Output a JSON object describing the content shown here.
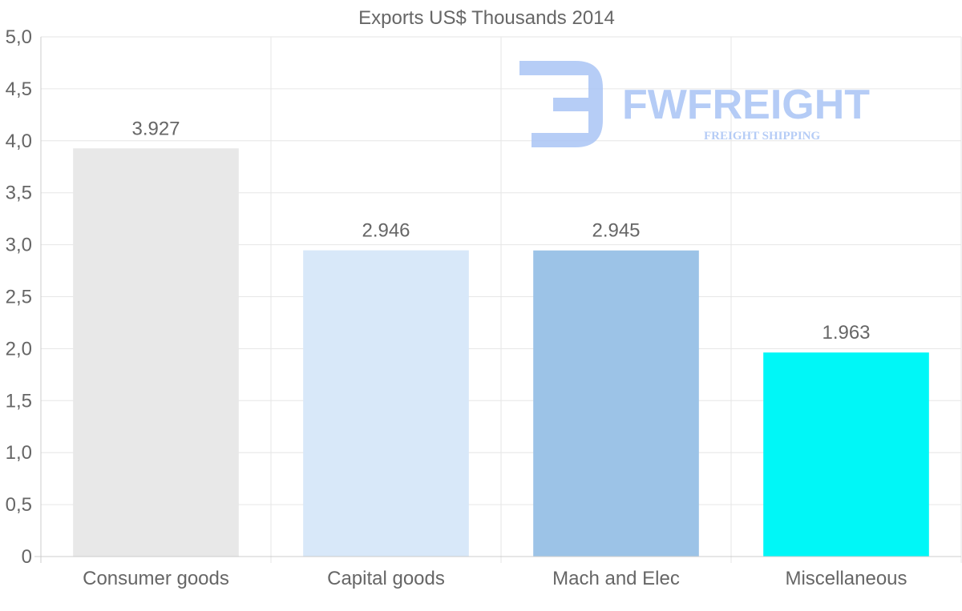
{
  "chart_data": {
    "type": "bar",
    "title": "Exports US$ Thousands 2014",
    "categories": [
      "Consumer goods",
      "Capital goods",
      "Mach and Elec",
      "Miscellaneous"
    ],
    "values": [
      3.927,
      2.946,
      2.945,
      1.963
    ],
    "value_labels": [
      "3.927",
      "2.946",
      "2.945",
      "1.963"
    ],
    "colors": [
      "#e8e8e8",
      "#d8e8f9",
      "#9cc3e7",
      "#00f7f7"
    ],
    "ylim": [
      0,
      5
    ],
    "yticks": [
      0,
      0.5,
      1,
      1.5,
      2,
      2.5,
      3,
      3.5,
      4,
      4.5,
      5
    ],
    "ytick_labels": [
      "0",
      "0,5",
      "1,0",
      "1,5",
      "2,0",
      "2,5",
      "3,0",
      "3,5",
      "4,0",
      "4,5",
      "5,0"
    ],
    "xlabel": "",
    "ylabel": "",
    "grid": true,
    "legend": "none"
  },
  "watermark": {
    "name": "FWFREIGHT",
    "tagline": "FREIGHT SHIPPING"
  }
}
